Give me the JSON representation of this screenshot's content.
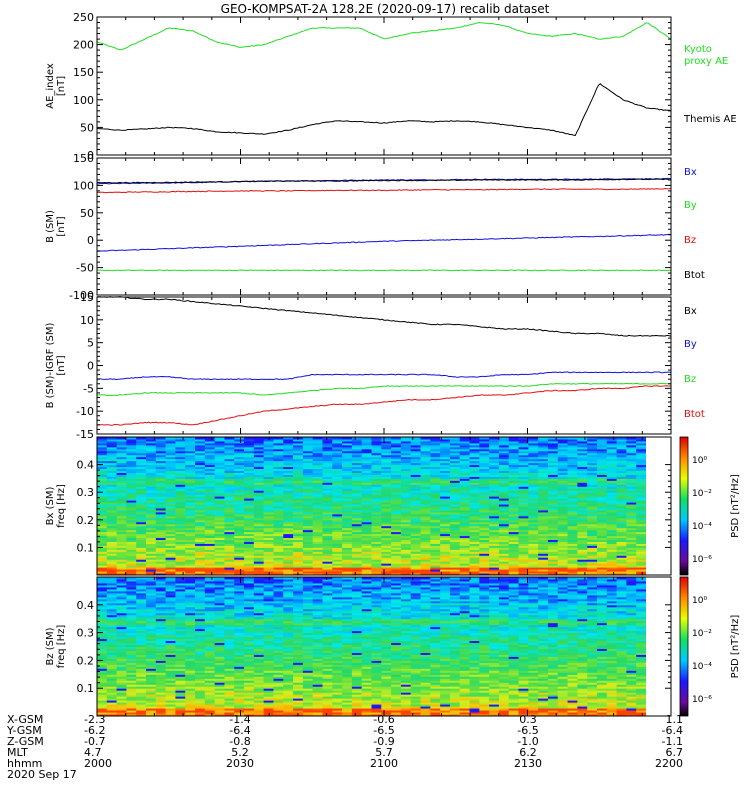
{
  "title": "GEO-KOMPSAT-2A 128.2E (2020-09-17) recalib dataset",
  "colors": {
    "black": "#000000",
    "green": "#22dd22",
    "red": "#e01010",
    "blue": "#1010dd"
  },
  "chart_data": [
    {
      "id": "ae",
      "type": "line",
      "ylabel": "AE_index\n[nT]",
      "ylim": [
        0,
        250
      ],
      "yticks": [
        0,
        50,
        100,
        150,
        200,
        250
      ],
      "x": [
        "2000",
        "2005",
        "2010",
        "2015",
        "2020",
        "2025",
        "2030",
        "2035",
        "2040",
        "2045",
        "2050",
        "2055",
        "2100",
        "2105",
        "2110",
        "2115",
        "2120",
        "2125",
        "2130",
        "2135",
        "2140",
        "2145",
        "2150",
        "2155",
        "2200"
      ],
      "series": [
        {
          "name": "Kyoto proxy AE",
          "legend": [
            "Kyoto",
            "proxy AE"
          ],
          "color": "#22dd22",
          "values": [
            205,
            190,
            210,
            230,
            225,
            205,
            195,
            200,
            215,
            230,
            230,
            230,
            210,
            220,
            225,
            230,
            240,
            235,
            220,
            215,
            220,
            210,
            215,
            240,
            210
          ]
        },
        {
          "name": "Themis AE",
          "legend": [
            "Themis AE"
          ],
          "color": "#000000",
          "values": [
            48,
            45,
            47,
            50,
            48,
            42,
            40,
            38,
            45,
            55,
            62,
            60,
            58,
            62,
            60,
            62,
            60,
            55,
            50,
            45,
            35,
            130,
            100,
            85,
            80
          ]
        }
      ]
    },
    {
      "id": "bsm",
      "type": "line",
      "ylabel": "B (SM)\n[nT]",
      "ylim": [
        -100,
        150
      ],
      "yticks": [
        -100,
        -50,
        0,
        50,
        100,
        150
      ],
      "x": [
        "2000",
        "2010",
        "2020",
        "2030",
        "2040",
        "2050",
        "2100",
        "2110",
        "2120",
        "2130",
        "2140",
        "2150",
        "2200"
      ],
      "series": [
        {
          "name": "Bx",
          "legend": [
            "Bx"
          ],
          "color": "#1010dd",
          "values": [
            103,
            104,
            105,
            107,
            108,
            109,
            110,
            110,
            111,
            111,
            111,
            112,
            112
          ]
        },
        {
          "name": "By",
          "legend": [
            "By"
          ],
          "color": "#22dd22",
          "values": [
            -55,
            -55,
            -55,
            -55,
            -55,
            -55,
            -55,
            -55,
            -55,
            -55,
            -55,
            -55,
            -55
          ]
        },
        {
          "name": "Bz",
          "legend": [
            "Bz"
          ],
          "color": "#e01010",
          "values": [
            87,
            88,
            89,
            90,
            90,
            91,
            91,
            92,
            92,
            93,
            93,
            93,
            94
          ]
        },
        {
          "name": "Btot",
          "legend": [
            "Btot"
          ],
          "color": "#000000",
          "values": [
            105,
            105,
            106,
            107,
            108,
            108,
            109,
            109,
            110,
            110,
            110,
            111,
            111
          ]
        },
        {
          "name": "Bx-ref",
          "legend": [],
          "color": "#1010dd",
          "values": [
            -20,
            -17,
            -14,
            -11,
            -8,
            -5,
            -2,
            0,
            2,
            4,
            6,
            8,
            10
          ]
        }
      ]
    },
    {
      "id": "bigrf",
      "type": "line",
      "ylabel": "B (SM)-IGRF (SM)\n[nT]",
      "ylim": [
        -15,
        15
      ],
      "yticks": [
        -15,
        -10,
        -5,
        0,
        5,
        10,
        15
      ],
      "x": [
        "2000",
        "2005",
        "2010",
        "2015",
        "2020",
        "2025",
        "2030",
        "2035",
        "2040",
        "2045",
        "2050",
        "2055",
        "2100",
        "2105",
        "2110",
        "2115",
        "2120",
        "2125",
        "2130",
        "2135",
        "2140",
        "2145",
        "2150",
        "2155",
        "2200"
      ],
      "series": [
        {
          "name": "Bx",
          "legend": [
            "Bx"
          ],
          "color": "#000000",
          "values": [
            15,
            15,
            14.5,
            14.5,
            14,
            13.5,
            13,
            12.5,
            12,
            11.5,
            11,
            10.5,
            10,
            9.5,
            9,
            9,
            8.5,
            8,
            8,
            7.5,
            7,
            7,
            6.5,
            6.5,
            6.5
          ]
        },
        {
          "name": "By",
          "legend": [
            "By"
          ],
          "color": "#1010dd",
          "values": [
            -3,
            -3,
            -2.5,
            -2.5,
            -3,
            -3,
            -3,
            -3,
            -3,
            -2,
            -2,
            -2,
            -2,
            -2,
            -2,
            -2.5,
            -2.5,
            -2,
            -2,
            -1.5,
            -1.5,
            -1.5,
            -1.5,
            -1.5,
            -1.5
          ]
        },
        {
          "name": "Bz",
          "legend": [
            "Bz"
          ],
          "color": "#22dd22",
          "values": [
            -6.5,
            -6.5,
            -6,
            -6,
            -6,
            -6,
            -6,
            -6.5,
            -6,
            -5.5,
            -5,
            -5,
            -4.5,
            -4.5,
            -4.5,
            -4.5,
            -4.5,
            -4.5,
            -4.5,
            -4,
            -4,
            -4,
            -4,
            -4,
            -4
          ]
        },
        {
          "name": "Btot",
          "legend": [
            "Btot"
          ],
          "color": "#e01010",
          "values": [
            -13,
            -13,
            -12.5,
            -12.5,
            -13,
            -12,
            -11,
            -10,
            -9.5,
            -9,
            -8.5,
            -8.5,
            -8,
            -7.5,
            -7.5,
            -7,
            -6.5,
            -6.5,
            -6,
            -5.5,
            -5.5,
            -5,
            -5,
            -4.5,
            -4.5
          ]
        }
      ]
    },
    {
      "id": "bx_spec",
      "type": "heatmap",
      "ylabel": "Bx (SM)\nfreq [Hz]",
      "ylim": [
        0,
        0.5
      ],
      "yticks": [
        0.1,
        0.2,
        0.3,
        0.4
      ],
      "colorbar_label": "PSD [nT²/Hz]",
      "colorbar_ticks": [
        "10⁰",
        "10⁻²",
        "10⁻⁴",
        "10⁻⁶"
      ]
    },
    {
      "id": "bz_spec",
      "type": "heatmap",
      "ylabel": "Bz (SM)\nfreq [Hz]",
      "ylim": [
        0,
        0.5
      ],
      "yticks": [
        0.1,
        0.2,
        0.3,
        0.4
      ],
      "colorbar_label": "PSD [nT²/Hz]",
      "colorbar_ticks": [
        "10⁰",
        "10⁻²",
        "10⁻⁴",
        "10⁻⁶"
      ]
    }
  ],
  "orbit_table": {
    "labels": [
      "X-GSM",
      "Y-GSM",
      "Z-GSM",
      "MLT",
      "hhmm",
      "2020 Sep 17"
    ],
    "columns": [
      [
        "-2.3",
        "-6.2",
        "-0.7",
        "4.7",
        "2000"
      ],
      [
        "-1.4",
        "-6.4",
        "-0.8",
        "5.2",
        "2030"
      ],
      [
        "-0.6",
        "-6.5",
        "-0.9",
        "5.7",
        "2100"
      ],
      [
        "0.3",
        "-6.5",
        "-1.0",
        "6.2",
        "2130"
      ],
      [
        "1.1",
        "-6.4",
        "-1.1",
        "6.7",
        "2200"
      ]
    ]
  }
}
